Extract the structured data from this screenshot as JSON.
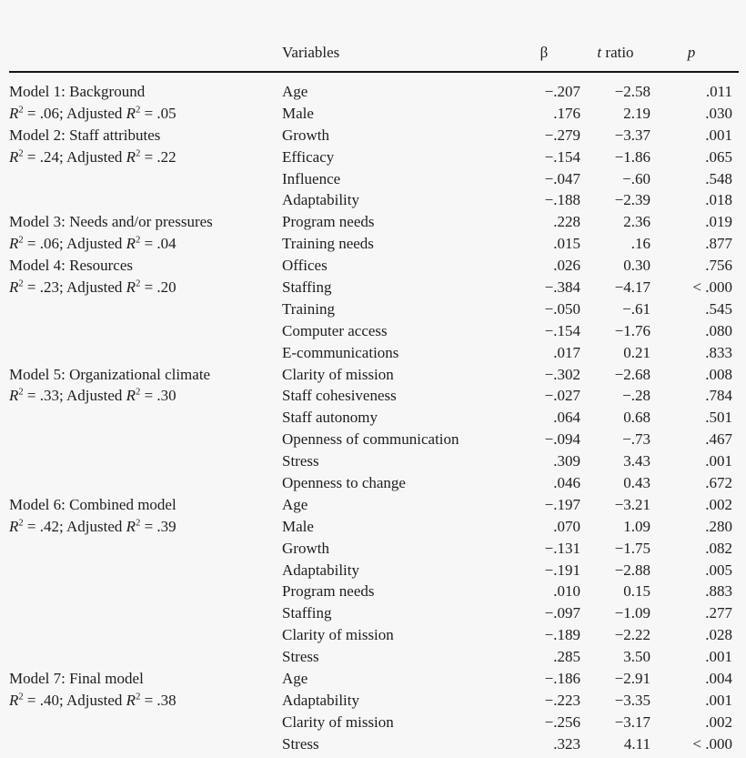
{
  "colors": {
    "background": "#f7f7f7",
    "text": "#1e1e1e",
    "rule": "#141414"
  },
  "table": {
    "headers": [
      {
        "id": "variables",
        "label": "Variables"
      },
      {
        "id": "beta",
        "label": "β"
      },
      {
        "id": "t_ratio",
        "label": "t ratio"
      },
      {
        "id": "p",
        "label": "p"
      }
    ],
    "models": [
      {
        "name": "Model 1: Background",
        "stats": "R² = .06; Adjusted R² = .05",
        "rows": [
          {
            "variable": "Age",
            "beta": "−.207",
            "t": "−2.58",
            "p": ".011"
          },
          {
            "variable": "Male",
            "beta": ".176",
            "t": "2.19",
            "p": ".030"
          }
        ]
      },
      {
        "name": "Model 2: Staff attributes",
        "stats": "R² = .24; Adjusted R² = .22",
        "rows": [
          {
            "variable": "Growth",
            "beta": "−.279",
            "t": "−3.37",
            "p": ".001"
          },
          {
            "variable": "Efficacy",
            "beta": "−.154",
            "t": "−1.86",
            "p": ".065"
          },
          {
            "variable": "Influence",
            "beta": "−.047",
            "t": "−.60",
            "p": ".548"
          },
          {
            "variable": "Adaptability",
            "beta": "−.188",
            "t": "−2.39",
            "p": ".018"
          }
        ]
      },
      {
        "name": "Model 3: Needs and/or pressures",
        "stats": "R² = .06; Adjusted R² = .04",
        "rows": [
          {
            "variable": "Program needs",
            "beta": ".228",
            "t": "2.36",
            "p": ".019"
          },
          {
            "variable": "Training needs",
            "beta": ".015",
            "t": ".16",
            "p": ".877"
          }
        ]
      },
      {
        "name": "Model 4: Resources",
        "stats": "R² = .23; Adjusted R² = .20",
        "rows": [
          {
            "variable": "Offices",
            "beta": ".026",
            "t": "0.30",
            "p": ".756"
          },
          {
            "variable": "Staffing",
            "beta": "−.384",
            "t": "−4.17",
            "p": "< .000"
          },
          {
            "variable": "Training",
            "beta": "−.050",
            "t": "−.61",
            "p": ".545"
          },
          {
            "variable": "Computer access",
            "beta": "−.154",
            "t": "−1.76",
            "p": ".080"
          },
          {
            "variable": "E-communications",
            "beta": ".017",
            "t": "0.21",
            "p": ".833"
          }
        ]
      },
      {
        "name": "Model 5: Organizational climate",
        "stats": "R² = .33; Adjusted R² = .30",
        "rows": [
          {
            "variable": "Clarity of mission",
            "beta": "−.302",
            "t": "−2.68",
            "p": ".008"
          },
          {
            "variable": "Staff cohesiveness",
            "beta": "−.027",
            "t": "−.28",
            "p": ".784"
          },
          {
            "variable": "Staff autonomy",
            "beta": ".064",
            "t": "0.68",
            "p": ".501"
          },
          {
            "variable": "Openness of communication",
            "beta": "−.094",
            "t": "−.73",
            "p": ".467"
          },
          {
            "variable": "Stress",
            "beta": ".309",
            "t": "3.43",
            "p": ".001"
          },
          {
            "variable": "Openness to change",
            "beta": ".046",
            "t": "0.43",
            "p": ".672"
          }
        ]
      },
      {
        "name": "Model 6: Combined model",
        "stats": "R² = .42; Adjusted R² = .39",
        "rows": [
          {
            "variable": "Age",
            "beta": "−.197",
            "t": "−3.21",
            "p": ".002"
          },
          {
            "variable": "Male",
            "beta": ".070",
            "t": "1.09",
            "p": ".280"
          },
          {
            "variable": "Growth",
            "beta": "−.131",
            "t": "−1.75",
            "p": ".082"
          },
          {
            "variable": "Adaptability",
            "beta": "−.191",
            "t": "−2.88",
            "p": ".005"
          },
          {
            "variable": "Program needs",
            "beta": ".010",
            "t": "0.15",
            "p": ".883"
          },
          {
            "variable": "Staffing",
            "beta": "−.097",
            "t": "−1.09",
            "p": ".277"
          },
          {
            "variable": "Clarity of mission",
            "beta": "−.189",
            "t": "−2.22",
            "p": ".028"
          },
          {
            "variable": "Stress",
            "beta": ".285",
            "t": "3.50",
            "p": ".001"
          }
        ]
      },
      {
        "name": "Model 7: Final model",
        "stats": "R² = .40; Adjusted R² = .38",
        "rows": [
          {
            "variable": "Age",
            "beta": "−.186",
            "t": "−2.91",
            "p": ".004"
          },
          {
            "variable": "Adaptability",
            "beta": "−.223",
            "t": "−3.35",
            "p": ".001"
          },
          {
            "variable": "Clarity of mission",
            "beta": "−.256",
            "t": "−3.17",
            "p": ".002"
          },
          {
            "variable": "Stress",
            "beta": ".323",
            "t": "4.11",
            "p": "< .000"
          }
        ]
      }
    ]
  }
}
